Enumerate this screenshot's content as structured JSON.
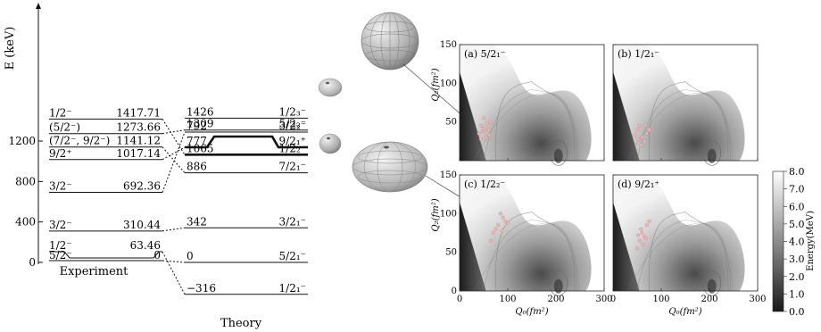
{
  "chart_data": [
    {
      "type": "level-scheme",
      "ylabel": "E (keV)",
      "yticks": [
        0,
        400,
        800,
        1200
      ],
      "ylim": [
        -400,
        1560
      ],
      "experiment": {
        "label": "Experiment",
        "levels": [
          {
            "spin": "1/2⁻",
            "energy": "1417.71",
            "value": 1417.71
          },
          {
            "spin": "(5/2⁻)",
            "energy": "1273.66",
            "value": 1273.66
          },
          {
            "spin": "(7/2⁻, 9/2⁻)",
            "energy": "1141.12",
            "value": 1141.12
          },
          {
            "spin": "9/2⁺",
            "energy": "1017.14",
            "value": 1017.14
          },
          {
            "spin": "3/2⁻",
            "energy": "692.36",
            "value": 692.36
          },
          {
            "spin": "3/2⁻",
            "energy": "310.44",
            "value": 310.44
          },
          {
            "spin": "1/2⁻",
            "energy": "63.46",
            "value": 63.46
          },
          {
            "spin": "5/2⁻",
            "energy": "0",
            "value": 0
          }
        ]
      },
      "theory": {
        "label": "Theory",
        "levels": [
          {
            "energy": "1426",
            "state": "1/2₃⁻",
            "value": 1426
          },
          {
            "energy": "1309",
            "state": "5/2₂⁻",
            "value": 1309
          },
          {
            "energy": "1065",
            "state": "1/2₂⁻",
            "value": 1065
          },
          {
            "energy": "886",
            "state": "7/2₁⁻",
            "value": 886
          },
          {
            "energy": "792",
            "state": "3/2₂⁻",
            "value": 792
          },
          {
            "energy": "777",
            "state": "9/2₁⁺",
            "value": 777
          },
          {
            "energy": "342",
            "state": "3/2₁⁻",
            "value": 342
          },
          {
            "energy": "0",
            "state": "5/2₁⁻",
            "value": 0
          },
          {
            "energy": "−316",
            "state": "1/2₁⁻",
            "value": -316
          }
        ]
      }
    },
    {
      "type": "heatmap",
      "xlabel": "Q₀(fm²)",
      "ylabel": "Q₂(fm²)",
      "xticks": [
        "0",
        "100",
        "200",
        "300"
      ],
      "yticks": [
        "0",
        "50",
        "100",
        "150"
      ],
      "xlim": [
        0,
        300
      ],
      "ylim": [
        0,
        150
      ],
      "panels": [
        {
          "label": "(a) 5/2₁⁻"
        },
        {
          "label": "(b) 1/2₁⁻"
        },
        {
          "label": "(c) 1/2₂⁻"
        },
        {
          "label": "(d) 9/2₁⁺"
        }
      ],
      "colorbar": {
        "label": "Energy(MeV)",
        "ticks": [
          "0.0",
          "1.0",
          "2.0",
          "3.0",
          "4.0",
          "5.0",
          "6.0",
          "7.0",
          "8.0"
        ],
        "range": [
          0,
          8
        ],
        "colors": [
          "#1a1a1a",
          "#ffffff"
        ]
      }
    }
  ]
}
